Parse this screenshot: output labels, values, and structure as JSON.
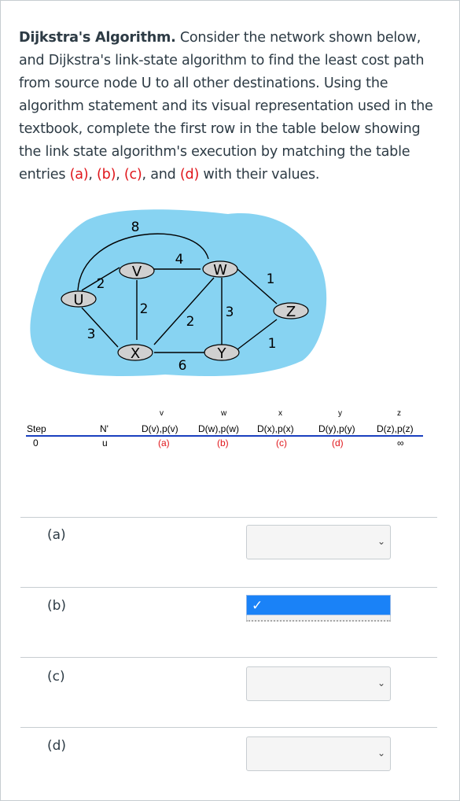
{
  "question": {
    "title": "Dijkstra's Algorithm.",
    "text_1": " Consider the network shown below, and Dijkstra's link-state algorithm to find the least cost path from source node U to all other destinations.  Using the algorithm statement and its visual representation used in the textbook, complete the first row in the table below showing the link state algorithm's execution by matching the table entries ",
    "ref_a": "(a)",
    "sep_1": ", ",
    "ref_b": "(b)",
    "sep_2": ", ",
    "ref_c": "(c)",
    "sep_3": ", and ",
    "ref_d": "(d)",
    "text_2": " with their values."
  },
  "network": {
    "nodes": {
      "u": "U",
      "v": "V",
      "w": "W",
      "x": "X",
      "y": "Y",
      "z": "Z"
    },
    "edge_costs": {
      "u_v": "2",
      "u_x": "3",
      "u_w": "8",
      "v_w": "4",
      "v_x": "2",
      "x_w": "2",
      "w_y": "3",
      "w_z": "1",
      "x_y": "6",
      "y_z": "1"
    },
    "colors": {
      "cloud": "#87d3f2",
      "node_fill": "#d0d0d0",
      "line": "#000000"
    }
  },
  "algo_table": {
    "headers": {
      "step": "Step",
      "nprime": "N'",
      "v_top": "v",
      "w_top": "w",
      "x_top": "x",
      "y_top": "y",
      "z_top": "z",
      "v": "D(v),p(v)",
      "w": "D(w),p(w)",
      "x": "D(x),p(x)",
      "y": "D(y),p(y)",
      "z": "D(z),p(z)"
    },
    "row0": {
      "step": "0",
      "nprime": "u",
      "v": "(a)",
      "w": "(b)",
      "x": "(c)",
      "y": "(d)",
      "z": "∞"
    },
    "header_line_color": "#1a3fbf"
  },
  "answers": [
    {
      "label": "(a)",
      "value": "",
      "state": "collapsed"
    },
    {
      "label": "(b)",
      "value": "✓",
      "state": "open"
    },
    {
      "label": "(c)",
      "value": "",
      "state": "collapsed"
    },
    {
      "label": "(d)",
      "value": "",
      "state": "collapsed"
    }
  ],
  "icons": {
    "chevron": "chevron-down-icon",
    "check": "check-icon"
  }
}
